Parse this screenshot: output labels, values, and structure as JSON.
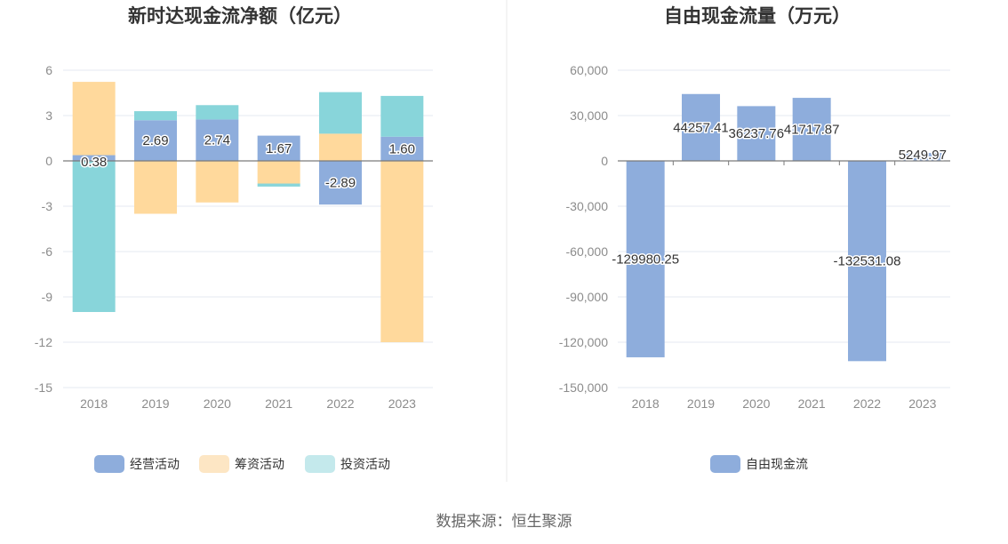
{
  "source_text": "数据来源：恒生聚源",
  "colors": {
    "operating": "#8eaddc",
    "financing": "#ffd99c",
    "investing": "#88d5da",
    "investing_legend": "#c4e9ec",
    "financing_legend": "#fde6c4",
    "free_cash_flow": "#8eaddc",
    "grid": "#e6e9f0",
    "axis": "#7a7a7a"
  },
  "chart_data": [
    {
      "type": "bar",
      "stacked": true,
      "title": "新时达现金流净额（亿元）",
      "categories": [
        "2018",
        "2019",
        "2020",
        "2021",
        "2022",
        "2023"
      ],
      "series": [
        {
          "name": "经营活动",
          "values": [
            0.38,
            2.69,
            2.74,
            1.67,
            -2.89,
            1.6
          ]
        },
        {
          "name": "筹资活动",
          "values": [
            4.85,
            -3.5,
            -2.75,
            -1.5,
            1.8,
            -12.0
          ]
        },
        {
          "name": "投资活动",
          "values": [
            -10.0,
            0.6,
            0.95,
            -0.2,
            2.75,
            2.7
          ]
        }
      ],
      "data_labels": [
        "0.38",
        "2.69",
        "2.74",
        "1.67",
        "-2.89",
        "1.60"
      ],
      "yticks": [
        "6",
        "3",
        "0",
        "-3",
        "-6",
        "-9",
        "-12",
        "-15"
      ],
      "ylim": [
        -15,
        6
      ],
      "legend": [
        "经营活动",
        "筹资活动",
        "投资活动"
      ],
      "legend_position": "bottom"
    },
    {
      "type": "bar",
      "title": "自由现金流量（万元）",
      "categories": [
        "2018",
        "2019",
        "2020",
        "2021",
        "2022",
        "2023"
      ],
      "series": [
        {
          "name": "自由现金流",
          "values": [
            -129980.25,
            44257.41,
            36237.76,
            41717.87,
            -132531.08,
            5249.97
          ]
        }
      ],
      "data_labels": [
        "-129980.25",
        "44257.41",
        "36237.76",
        "41717.87",
        "-132531.08",
        "5249.97"
      ],
      "yticks": [
        "60,000",
        "30,000",
        "0",
        "-30,000",
        "-60,000",
        "-90,000",
        "-120,000",
        "-150,000"
      ],
      "ylim": [
        -150000,
        60000
      ],
      "legend": [
        "自由现金流"
      ],
      "legend_position": "bottom"
    }
  ]
}
